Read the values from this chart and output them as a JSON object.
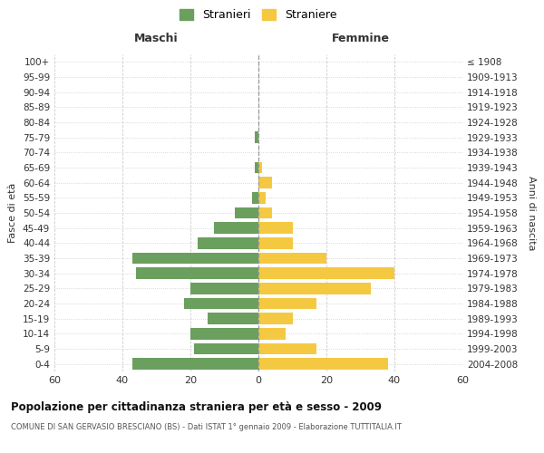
{
  "age_groups": [
    "0-4",
    "5-9",
    "10-14",
    "15-19",
    "20-24",
    "25-29",
    "30-34",
    "35-39",
    "40-44",
    "45-49",
    "50-54",
    "55-59",
    "60-64",
    "65-69",
    "70-74",
    "75-79",
    "80-84",
    "85-89",
    "90-94",
    "95-99",
    "100+"
  ],
  "birth_years": [
    "2004-2008",
    "1999-2003",
    "1994-1998",
    "1989-1993",
    "1984-1988",
    "1979-1983",
    "1974-1978",
    "1969-1973",
    "1964-1968",
    "1959-1963",
    "1954-1958",
    "1949-1953",
    "1944-1948",
    "1939-1943",
    "1934-1938",
    "1929-1933",
    "1924-1928",
    "1919-1923",
    "1914-1918",
    "1909-1913",
    "≤ 1908"
  ],
  "males": [
    37,
    19,
    20,
    15,
    22,
    20,
    36,
    37,
    18,
    13,
    7,
    2,
    0,
    1,
    0,
    1,
    0,
    0,
    0,
    0,
    0
  ],
  "females": [
    38,
    17,
    8,
    10,
    17,
    33,
    40,
    20,
    10,
    10,
    4,
    2,
    4,
    1,
    0,
    0,
    0,
    0,
    0,
    0,
    0
  ],
  "male_color": "#6a9f5e",
  "female_color": "#f5c842",
  "grid_color": "#cccccc",
  "title": "Popolazione per cittadinanza straniera per età e sesso - 2009",
  "subtitle": "COMUNE DI SAN GERVASIO BRESCIANO (BS) - Dati ISTAT 1° gennaio 2009 - Elaborazione TUTTITALIA.IT",
  "ylabel_left": "Fasce di età",
  "ylabel_right": "Anni di nascita",
  "xlabel_left": "Maschi",
  "xlabel_right": "Femmine",
  "legend_male": "Stranieri",
  "legend_female": "Straniere",
  "xlim": 60
}
